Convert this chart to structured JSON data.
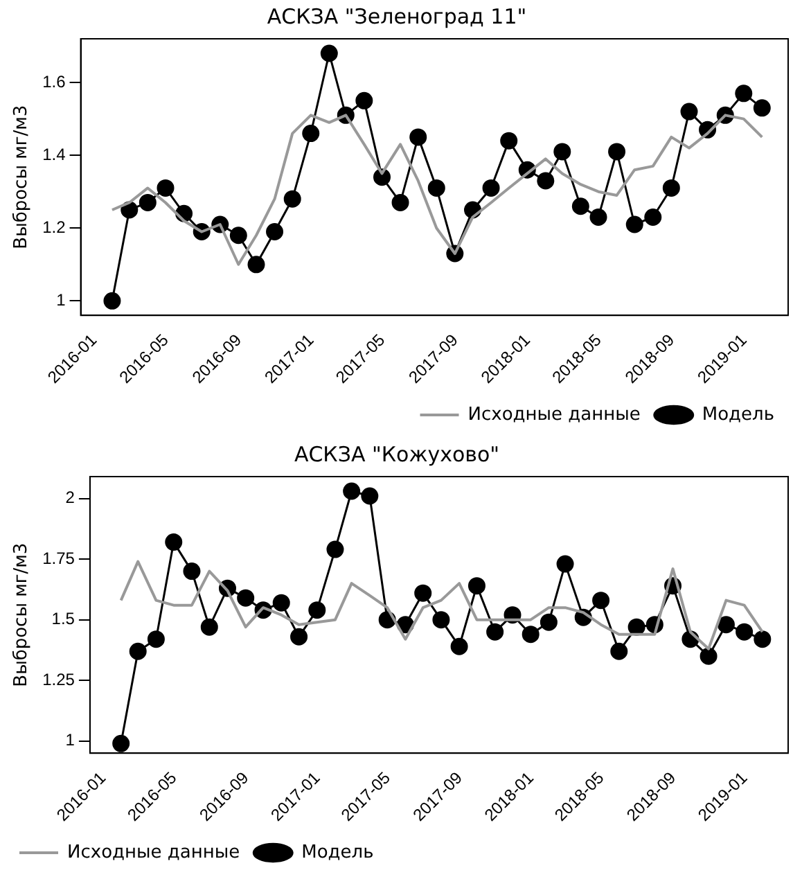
{
  "chart_data": [
    {
      "type": "line",
      "title": "АСКЗА \"Зеленоград 11\"",
      "ylabel": "Выбросы мг/м3",
      "x": [
        "2016-01-31",
        "2016-02-29",
        "2016-03-31",
        "2016-04-30",
        "2016-05-31",
        "2016-06-30",
        "2016-07-31",
        "2016-08-31",
        "2016-09-30",
        "2016-10-31",
        "2016-11-30",
        "2016-12-31",
        "2017-01-31",
        "2017-02-28",
        "2017-03-31",
        "2017-04-30",
        "2017-05-31",
        "2017-06-30",
        "2017-07-31",
        "2017-08-31",
        "2017-09-30",
        "2017-10-31",
        "2017-11-30",
        "2017-12-31",
        "2018-01-31",
        "2018-02-28",
        "2018-03-31",
        "2018-04-30",
        "2018-05-31",
        "2018-06-30",
        "2018-07-31",
        "2018-08-31",
        "2018-09-30",
        "2018-10-31",
        "2018-11-30",
        "2018-12-31",
        "2019-01-31"
      ],
      "series": [
        {
          "name": "Исходные данные",
          "color": "#999999",
          "marker": "none",
          "values": [
            1.25,
            1.27,
            1.31,
            1.27,
            1.22,
            1.19,
            1.21,
            1.1,
            1.18,
            1.28,
            1.46,
            1.51,
            1.49,
            1.51,
            1.43,
            1.35,
            1.43,
            1.33,
            1.2,
            1.13,
            1.23,
            1.27,
            1.31,
            1.35,
            1.39,
            1.35,
            1.32,
            1.3,
            1.29,
            1.36,
            1.37,
            1.45,
            1.42,
            1.46,
            1.51,
            1.5,
            1.45
          ]
        },
        {
          "name": "Модель",
          "color": "#000000",
          "marker": "circle",
          "values": [
            1.0,
            1.25,
            1.27,
            1.31,
            1.24,
            1.19,
            1.21,
            1.18,
            1.1,
            1.19,
            1.28,
            1.46,
            1.68,
            1.51,
            1.55,
            1.34,
            1.27,
            1.45,
            1.31,
            1.13,
            1.25,
            1.31,
            1.44,
            1.36,
            1.33,
            1.41,
            1.26,
            1.23,
            1.41,
            1.21,
            1.23,
            1.31,
            1.52,
            1.47,
            1.51,
            1.57,
            1.53
          ]
        }
      ],
      "xlim": [
        "2015-12-09",
        "2019-03-16"
      ],
      "xticks": [
        "2016-01",
        "2016-05",
        "2016-09",
        "2017-01",
        "2017-05",
        "2017-09",
        "2018-01",
        "2018-05",
        "2018-09",
        "2019-01"
      ],
      "ylim": [
        0.96,
        1.72
      ],
      "yticks": [
        1.0,
        1.2,
        1.4,
        1.6
      ],
      "grid": false,
      "legend": "bottom right"
    },
    {
      "type": "line",
      "title": "АСКЗА \"Кожухово\"",
      "ylabel": "Выбросы мг/м3",
      "x": [
        "2016-01-31",
        "2016-02-29",
        "2016-03-31",
        "2016-04-30",
        "2016-05-31",
        "2016-06-30",
        "2016-07-31",
        "2016-08-31",
        "2016-09-30",
        "2016-10-31",
        "2016-11-30",
        "2016-12-31",
        "2017-01-31",
        "2017-02-28",
        "2017-03-31",
        "2017-04-30",
        "2017-05-31",
        "2017-06-30",
        "2017-07-31",
        "2017-08-31",
        "2017-09-30",
        "2017-10-31",
        "2017-11-30",
        "2017-12-31",
        "2018-01-31",
        "2018-02-28",
        "2018-03-31",
        "2018-04-30",
        "2018-05-31",
        "2018-06-30",
        "2018-07-31",
        "2018-08-31",
        "2018-09-30",
        "2018-10-31",
        "2018-11-30",
        "2018-12-31",
        "2019-01-31"
      ],
      "series": [
        {
          "name": "Исходные данные",
          "color": "#999999",
          "marker": "none",
          "values": [
            1.58,
            1.74,
            1.58,
            1.56,
            1.56,
            1.7,
            1.62,
            1.47,
            1.55,
            1.52,
            1.48,
            1.49,
            1.5,
            1.65,
            1.6,
            1.55,
            1.42,
            1.55,
            1.58,
            1.65,
            1.5,
            1.5,
            1.5,
            1.5,
            1.55,
            1.55,
            1.53,
            1.48,
            1.44,
            1.44,
            1.44,
            1.71,
            1.45,
            1.38,
            1.58,
            1.56,
            1.45
          ]
        },
        {
          "name": "Модель",
          "color": "#000000",
          "marker": "circle",
          "values": [
            0.99,
            1.37,
            1.42,
            1.82,
            1.7,
            1.47,
            1.63,
            1.59,
            1.54,
            1.57,
            1.43,
            1.54,
            1.79,
            2.03,
            2.01,
            1.5,
            1.48,
            1.61,
            1.5,
            1.39,
            1.64,
            1.45,
            1.52,
            1.44,
            1.49,
            1.73,
            1.51,
            1.58,
            1.37,
            1.47,
            1.48,
            1.64,
            1.42,
            1.35,
            1.48,
            1.45,
            1.42
          ]
        }
      ],
      "xlim": [
        "2015-12-09",
        "2019-03-16"
      ],
      "xticks": [
        "2016-01",
        "2016-05",
        "2016-09",
        "2017-01",
        "2017-05",
        "2017-09",
        "2018-01",
        "2018-05",
        "2018-09",
        "2019-01"
      ],
      "ylim": [
        0.95,
        2.09
      ],
      "yticks": [
        1.0,
        1.25,
        1.5,
        1.75,
        2.0
      ],
      "grid": false,
      "legend": "bottom left"
    }
  ]
}
